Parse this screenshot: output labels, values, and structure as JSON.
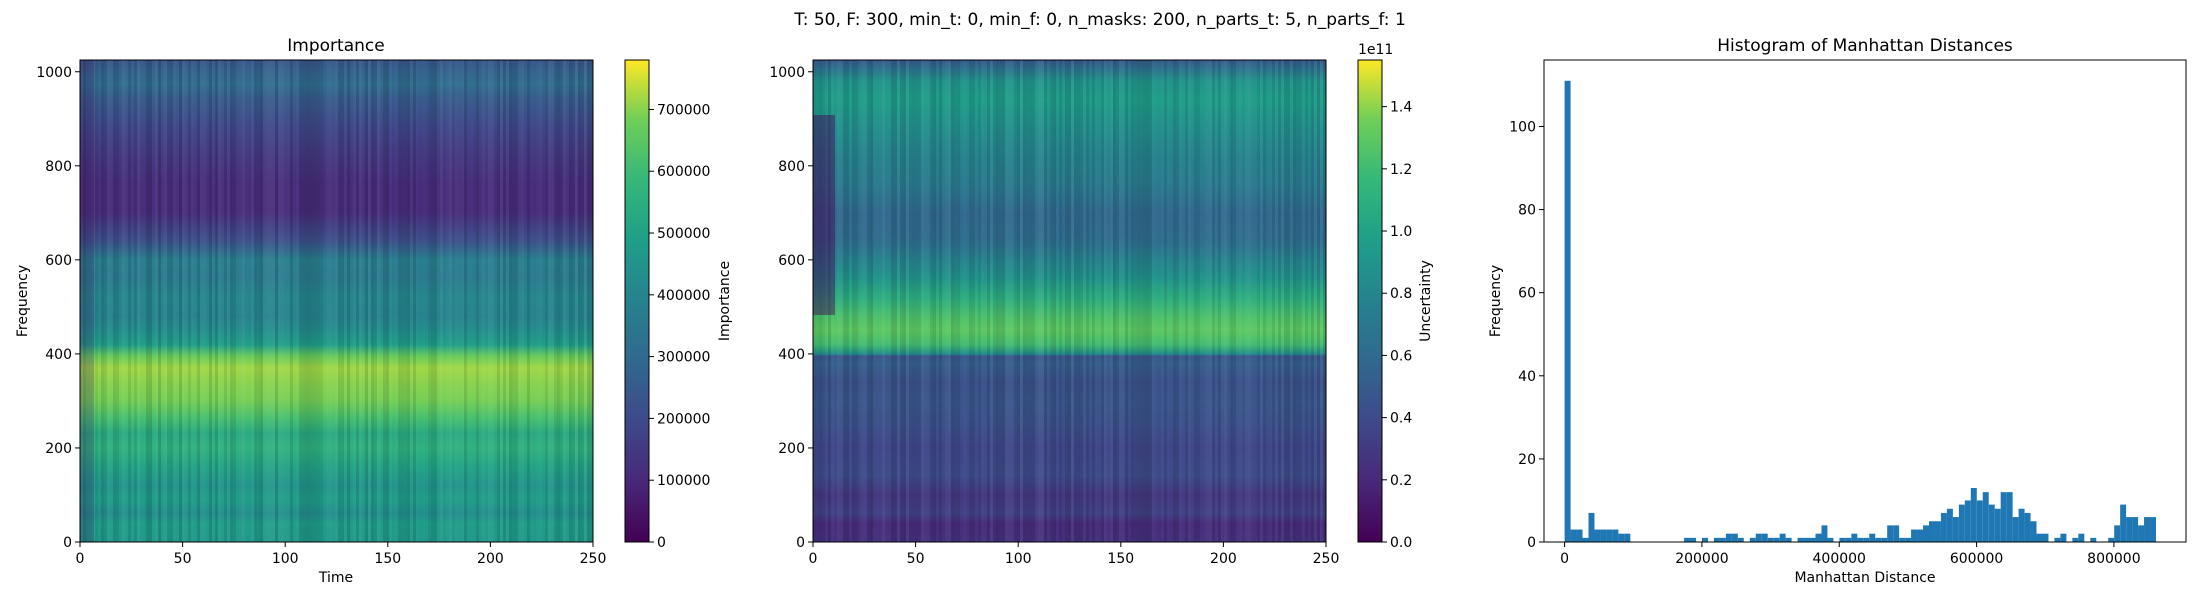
{
  "suptitle": "T: 50, F: 300, min_t: 0, min_f: 0, n_masks: 200, n_parts_t: 5, n_parts_f: 1",
  "chart_data": [
    {
      "type": "heatmap",
      "title": "Importance",
      "xlabel": "Time",
      "ylabel": "Frequency",
      "xlim": [
        0,
        250
      ],
      "ylim": [
        0,
        1025
      ],
      "xticks": [
        "0",
        "50",
        "100",
        "150",
        "200",
        "250"
      ],
      "yticks": [
        "0",
        "200",
        "400",
        "600",
        "800",
        "1000"
      ],
      "colorbar": {
        "label": "Importance",
        "min": 0,
        "max": 780000,
        "ticks": [
          "0",
          "100000",
          "200000",
          "300000",
          "400000",
          "500000",
          "600000",
          "700000"
        ],
        "offset": ""
      },
      "colormap": "viridis",
      "frequency_profile": [
        [
          0,
          0.6
        ],
        [
          40,
          0.62
        ],
        [
          60,
          0.55
        ],
        [
          90,
          0.62
        ],
        [
          120,
          0.58
        ],
        [
          160,
          0.65
        ],
        [
          200,
          0.72
        ],
        [
          230,
          0.68
        ],
        [
          260,
          0.78
        ],
        [
          300,
          0.88
        ],
        [
          340,
          0.9
        ],
        [
          370,
          0.92
        ],
        [
          395,
          0.86
        ],
        [
          420,
          0.62
        ],
        [
          450,
          0.55
        ],
        [
          480,
          0.5
        ],
        [
          520,
          0.52
        ],
        [
          560,
          0.46
        ],
        [
          600,
          0.48
        ],
        [
          640,
          0.28
        ],
        [
          700,
          0.14
        ],
        [
          760,
          0.14
        ],
        [
          820,
          0.18
        ],
        [
          880,
          0.24
        ],
        [
          940,
          0.32
        ],
        [
          975,
          0.4
        ],
        [
          1000,
          0.35
        ],
        [
          1025,
          0.3
        ]
      ]
    },
    {
      "type": "heatmap",
      "title": "",
      "xlabel": "",
      "ylabel": "",
      "xlim": [
        0,
        250
      ],
      "ylim": [
        0,
        1025
      ],
      "xticks": [
        "0",
        "50",
        "100",
        "150",
        "200",
        "250"
      ],
      "yticks": [
        "0",
        "200",
        "400",
        "600",
        "800",
        "1000"
      ],
      "colorbar": {
        "label": "Uncertainty",
        "min": 0,
        "max": 1.55,
        "ticks": [
          "0.0",
          "0.2",
          "0.4",
          "0.6",
          "0.8",
          "1.0",
          "1.2",
          "1.4"
        ],
        "offset": "1e11"
      },
      "colormap": "viridis",
      "frequency_profile": [
        [
          0,
          0.16
        ],
        [
          40,
          0.14
        ],
        [
          60,
          0.22
        ],
        [
          100,
          0.18
        ],
        [
          140,
          0.26
        ],
        [
          200,
          0.24
        ],
        [
          250,
          0.28
        ],
        [
          300,
          0.3
        ],
        [
          340,
          0.28
        ],
        [
          380,
          0.34
        ],
        [
          395,
          0.3
        ],
        [
          400,
          0.55
        ],
        [
          420,
          0.78
        ],
        [
          450,
          0.84
        ],
        [
          480,
          0.8
        ],
        [
          520,
          0.7
        ],
        [
          560,
          0.58
        ],
        [
          600,
          0.5
        ],
        [
          640,
          0.4
        ],
        [
          700,
          0.38
        ],
        [
          760,
          0.46
        ],
        [
          820,
          0.5
        ],
        [
          880,
          0.56
        ],
        [
          940,
          0.62
        ],
        [
          980,
          0.58
        ],
        [
          1010,
          0.4
        ],
        [
          1025,
          0.32
        ]
      ]
    },
    {
      "type": "bar",
      "title": "Histogram of Manhattan Distances",
      "xlabel": "Manhattan Distance",
      "ylabel": "Frequency",
      "xlim": [
        -30000,
        905000
      ],
      "ylim": [
        0,
        116
      ],
      "xticks": [
        0,
        200000,
        400000,
        600000,
        800000
      ],
      "yticks": [
        0,
        20,
        40,
        60,
        80,
        100
      ],
      "bin_width": 8700,
      "bars": [
        [
          0,
          111
        ],
        [
          8700,
          3
        ],
        [
          17400,
          3
        ],
        [
          26100,
          1
        ],
        [
          34800,
          7
        ],
        [
          43500,
          3
        ],
        [
          52200,
          3
        ],
        [
          60900,
          3
        ],
        [
          69600,
          3
        ],
        [
          78300,
          2
        ],
        [
          87000,
          2
        ],
        [
          174000,
          1
        ],
        [
          182700,
          1
        ],
        [
          200100,
          1
        ],
        [
          217500,
          1
        ],
        [
          226200,
          1
        ],
        [
          234900,
          2
        ],
        [
          243600,
          2
        ],
        [
          252300,
          1
        ],
        [
          269700,
          1
        ],
        [
          278400,
          2
        ],
        [
          287100,
          2
        ],
        [
          295800,
          1
        ],
        [
          304500,
          1
        ],
        [
          313200,
          2
        ],
        [
          321900,
          1
        ],
        [
          339300,
          1
        ],
        [
          348000,
          1
        ],
        [
          356700,
          1
        ],
        [
          365400,
          2
        ],
        [
          374100,
          4
        ],
        [
          382800,
          1
        ],
        [
          400200,
          1
        ],
        [
          408900,
          1
        ],
        [
          417600,
          2
        ],
        [
          426300,
          1
        ],
        [
          435000,
          1
        ],
        [
          443700,
          2
        ],
        [
          452400,
          1
        ],
        [
          461100,
          1
        ],
        [
          469800,
          4
        ],
        [
          478500,
          4
        ],
        [
          487200,
          1
        ],
        [
          495900,
          1
        ],
        [
          504600,
          3
        ],
        [
          513300,
          3
        ],
        [
          522000,
          4
        ],
        [
          530700,
          5
        ],
        [
          539400,
          5
        ],
        [
          548100,
          7
        ],
        [
          556800,
          8
        ],
        [
          565500,
          6
        ],
        [
          574200,
          9
        ],
        [
          582900,
          10
        ],
        [
          591600,
          13
        ],
        [
          600300,
          10
        ],
        [
          609000,
          12
        ],
        [
          617700,
          9
        ],
        [
          626400,
          8
        ],
        [
          635100,
          12
        ],
        [
          643800,
          12
        ],
        [
          652500,
          6
        ],
        [
          661200,
          8
        ],
        [
          669900,
          7
        ],
        [
          678600,
          5
        ],
        [
          687300,
          2
        ],
        [
          696000,
          2
        ],
        [
          713400,
          1
        ],
        [
          722100,
          2
        ],
        [
          739500,
          1
        ],
        [
          748200,
          2
        ],
        [
          765600,
          1
        ],
        [
          791700,
          1
        ],
        [
          800400,
          4
        ],
        [
          809100,
          9
        ],
        [
          817800,
          6
        ],
        [
          826500,
          6
        ],
        [
          835200,
          4
        ],
        [
          843900,
          6
        ],
        [
          852600,
          6
        ]
      ]
    }
  ]
}
